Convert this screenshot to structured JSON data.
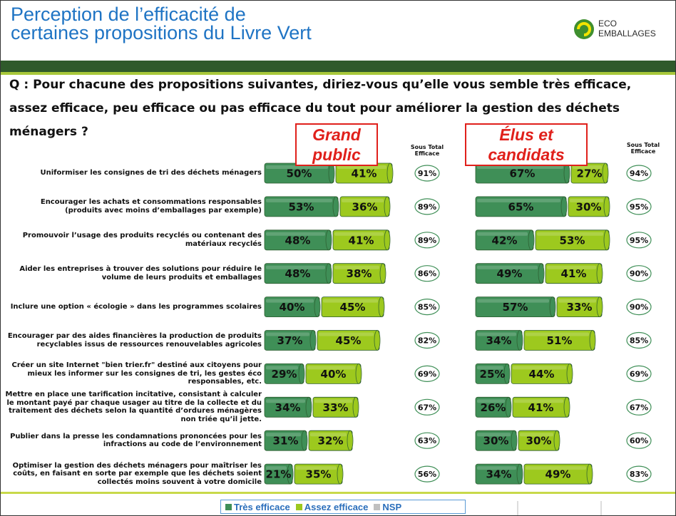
{
  "header": {
    "title": [
      "Perception de l’efficacité de",
      "certaines propositions du Livre Vert"
    ],
    "logo": [
      "ECO",
      "EMBALLAGES"
    ]
  },
  "question": "Q  : Pour chacune des propositions suivantes, diriez-vous qu’elle vous semble très efficace, assez efficace, peu efficace ou pas efficace du tout pour améliorer la gestion des déchets ménagers ?",
  "chart_data": {
    "type": "bar",
    "orientation": "horizontal",
    "stacked": true,
    "categories": [
      "Uniformiser les consignes de tri des déchets ménagers",
      "Encourager les achats et consommations responsables (produits avec moins d’emballages par exemple)",
      "Promouvoir l’usage des produits recyclés ou contenant des matériaux recyclés",
      "Aider les entreprises à trouver des solutions pour réduire le volume de leurs produits et emballages",
      "Inclure une option « écologie » dans les programmes scolaires",
      "Encourager par des aides financières la production de produits recyclables issus de ressources renouvelables agricoles",
      "Créer un site Internet \"bien trier.fr\" destiné aux citoyens pour mieux les informer sur les consignes de tri, les gestes éco responsables, etc.",
      "Mettre en place une tarification incitative, consistant à calculer le montant payé par chaque usager au titre de la collecte et du traitement des déchets selon la quantité d’ordures ménagères non triée qu’il jette.",
      "Publier dans la presse les condamnations prononcées pour les infractions au code de l’environnement",
      "Optimiser la gestion des déchets ménagers pour maîtriser les coûts, en faisant en sorte par exemple que les déchets soient collectés moins souvent à votre domicile"
    ],
    "series": [
      {
        "name": "Très efficace",
        "color": "#3f8f57"
      },
      {
        "name": "Assez efficace",
        "color": "#9dc91e"
      },
      {
        "name": "NSP",
        "color": "#c0c0c0"
      }
    ],
    "subtotal_name": "Sous Total Efficace",
    "panels": [
      {
        "title": "Grand public",
        "series": [
          {
            "values": [
              50,
              53,
              48,
              48,
              40,
              37,
              29,
              34,
              31,
              21
            ],
            "value_labels": [
              "50%",
              "53%",
              "48%",
              "48%",
              "40%",
              "37%",
              "29%",
              "34%",
              "31%",
              "21%"
            ]
          },
          {
            "values": [
              41,
              36,
              41,
              38,
              45,
              45,
              40,
              33,
              32,
              35
            ],
            "value_labels": [
              "41%",
              "36%",
              "41%",
              "38%",
              "45%",
              "45%",
              "40%",
              "33%",
              "32%",
              "35%"
            ]
          }
        ],
        "subtotal": {
          "values": [
            91,
            89,
            89,
            86,
            85,
            82,
            69,
            67,
            63,
            56
          ],
          "value_labels": [
            "91%",
            "89%",
            "89%",
            "86%",
            "85%",
            "82%",
            "69%",
            "67%",
            "63%",
            "56%"
          ]
        }
      },
      {
        "title": "Élus et candidats",
        "series": [
          {
            "values": [
              67,
              65,
              42,
              49,
              57,
              34,
              25,
              26,
              30,
              34
            ],
            "value_labels": [
              "67%",
              "65%",
              "42%",
              "49%",
              "57%",
              "34%",
              "25%",
              "26%",
              "30%",
              "34%"
            ]
          },
          {
            "values": [
              27,
              30,
              53,
              41,
              33,
              51,
              44,
              41,
              30,
              49
            ],
            "value_labels": [
              "27%",
              "30%",
              "53%",
              "41%",
              "33%",
              "51%",
              "44%",
              "41%",
              "30%",
              "49%"
            ]
          }
        ],
        "subtotal": {
          "values": [
            94,
            95,
            95,
            90,
            90,
            85,
            69,
            67,
            60,
            83
          ],
          "value_labels": [
            "94%",
            "95%",
            "95%",
            "90%",
            "90%",
            "85%",
            "69%",
            "67%",
            "60%",
            "83%"
          ]
        }
      }
    ]
  }
}
